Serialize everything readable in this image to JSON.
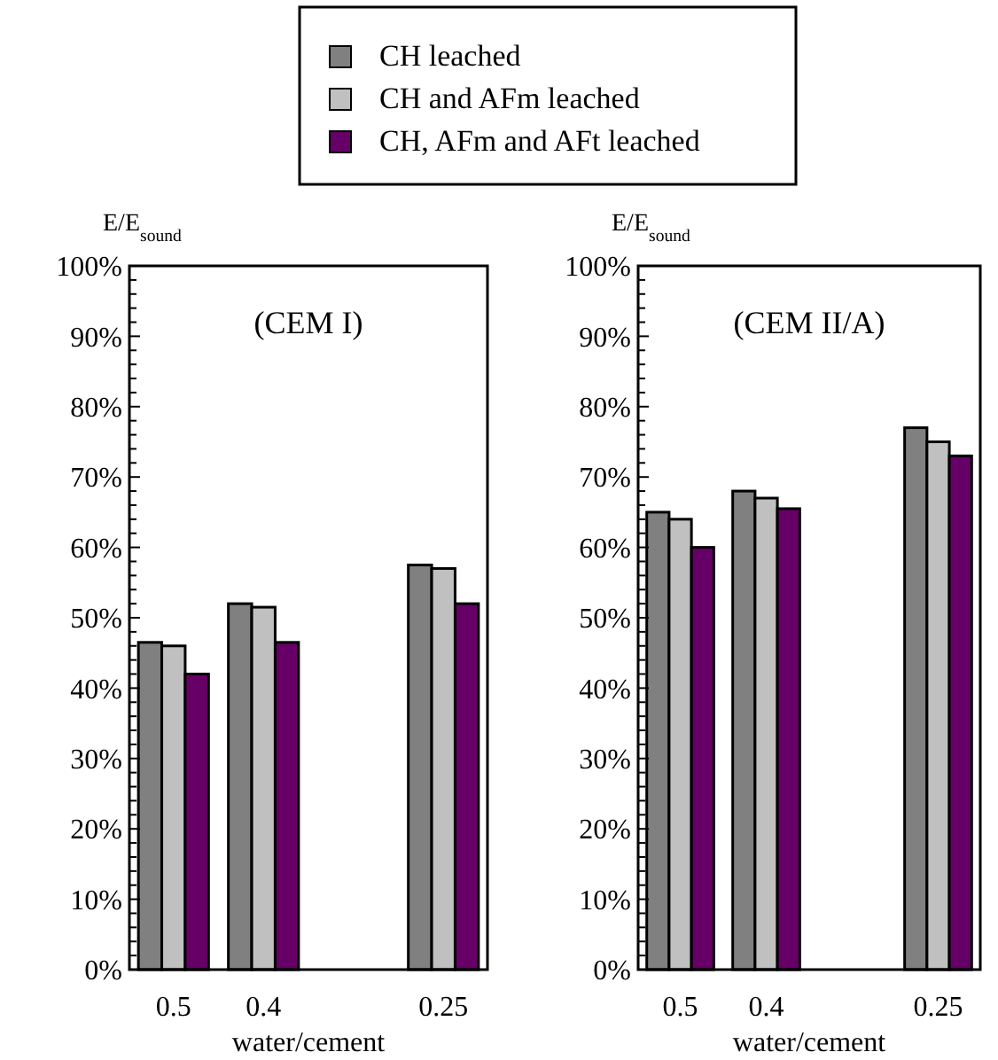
{
  "chart_data": [
    {
      "type": "bar",
      "ylabel": "E/E$_{sound}$",
      "xlabel": "water/cement",
      "annotations": [
        "(CEM I)"
      ],
      "categories": [
        "0.5",
        "0.4",
        null,
        "0.25"
      ],
      "ylim": [
        0,
        100
      ],
      "yticks": [
        {
          "value": 0,
          "label": "0%"
        },
        {
          "value": 10,
          "label": "10%"
        },
        {
          "value": 20,
          "label": "20%"
        },
        {
          "value": 30,
          "label": "30%"
        },
        {
          "value": 40,
          "label": "40%"
        },
        {
          "value": 50,
          "label": "50%"
        },
        {
          "value": 60,
          "label": "60%"
        },
        {
          "value": 70,
          "label": "70%"
        },
        {
          "value": 80,
          "label": "80%"
        },
        {
          "value": 90,
          "label": "90%"
        },
        {
          "value": 100,
          "label": "100%"
        }
      ],
      "grid": false,
      "legend": "top",
      "series": [
        {
          "name": "CH leached",
          "color": "#808080",
          "values": [
            46.5,
            52,
            null,
            57.5
          ]
        },
        {
          "name": "CH and AFm leached",
          "color": "#c0c0c0",
          "values": [
            46,
            51.5,
            null,
            57
          ]
        },
        {
          "name": "CH, AFm and AFt leached",
          "color": "#660066",
          "values": [
            42,
            46.5,
            null,
            52
          ]
        }
      ]
    },
    {
      "type": "bar",
      "ylabel": "E/E$_{sound}$",
      "xlabel": "water/cement",
      "annotations": [
        "(CEM II/A)"
      ],
      "categories": [
        "0.5",
        "0.4",
        null,
        "0.25"
      ],
      "ylim": [
        0,
        100
      ],
      "yticks": [
        {
          "value": 0,
          "label": "0%"
        },
        {
          "value": 10,
          "label": "10%"
        },
        {
          "value": 20,
          "label": "20%"
        },
        {
          "value": 30,
          "label": "30%"
        },
        {
          "value": 40,
          "label": "40%"
        },
        {
          "value": 50,
          "label": "50%"
        },
        {
          "value": 60,
          "label": "60%"
        },
        {
          "value": 70,
          "label": "70%"
        },
        {
          "value": 80,
          "label": "80%"
        },
        {
          "value": 90,
          "label": "90%"
        },
        {
          "value": 100,
          "label": "100%"
        }
      ],
      "grid": false,
      "series": [
        {
          "color": "#808080",
          "values": [
            65,
            68,
            null,
            77
          ]
        },
        {
          "color": "#c0c0c0",
          "values": [
            64,
            67,
            null,
            75
          ]
        },
        {
          "color": "#660066",
          "values": [
            60,
            65.5,
            null,
            73
          ]
        }
      ]
    }
  ]
}
